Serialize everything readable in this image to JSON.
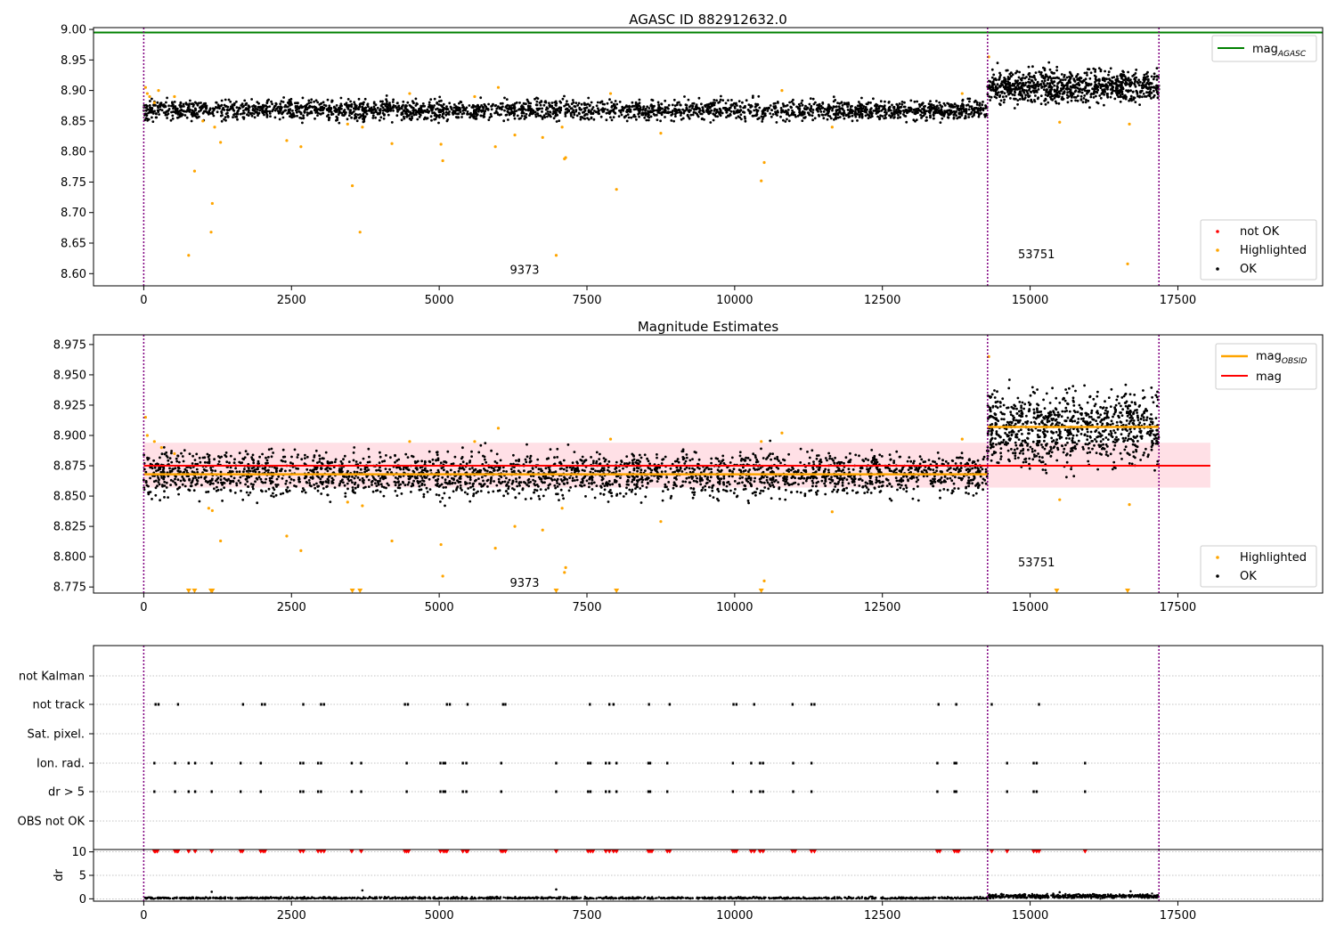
{
  "colors": {
    "ok": "#000000",
    "highlighted": "#ffa500",
    "not_ok": "#ff0000",
    "mag_agasc": "#008000",
    "mag_obsid": "#ffa500",
    "mag": "#ff0000",
    "mag_band": "#ffe0e6",
    "obs_boundary": "#800080",
    "grid": "#b0b0b0"
  },
  "chart_data": [
    {
      "type": "scatter",
      "title": "AGASC ID 882912632.0",
      "xlim": [
        -850,
        19950
      ],
      "ylim": [
        8.58,
        9.003
      ],
      "xticks": [
        0,
        2500,
        5000,
        7500,
        10000,
        12500,
        15000,
        17500
      ],
      "xtick_labels": [
        "0",
        "2500",
        "5000",
        "7500",
        "10000",
        "12500",
        "15000",
        "17500"
      ],
      "yticks": [
        8.6,
        8.65,
        8.7,
        8.75,
        8.8,
        8.85,
        8.9,
        8.95,
        9.0
      ],
      "ytick_labels": [
        "8.60",
        "8.65",
        "8.70",
        "8.75",
        "8.80",
        "8.85",
        "8.90",
        "8.95",
        "9.00"
      ],
      "obs_boundaries": [
        0,
        14280,
        17180
      ],
      "obsids": [
        {
          "label": "9373",
          "x": 7100,
          "y": 8.6
        },
        {
          "label": "53751",
          "x": 15700,
          "y": 8.625
        }
      ],
      "hlines": [
        {
          "name": "mag_AGASC",
          "y": 8.995,
          "x_range": [
            -850,
            19950
          ]
        }
      ],
      "segments": [
        {
          "x_range": [
            0,
            14280
          ],
          "center": 8.868,
          "spread": 0.008,
          "n": 2600
        },
        {
          "x_range": [
            14280,
            17180
          ],
          "center": 8.907,
          "spread": 0.013,
          "n": 900
        }
      ],
      "highlighted_points": [
        [
          30,
          8.905
        ],
        [
          60,
          8.895
        ],
        [
          100,
          8.89
        ],
        [
          180,
          8.88
        ],
        [
          250,
          8.9
        ],
        [
          520,
          8.89
        ],
        [
          760,
          8.63
        ],
        [
          860,
          8.768
        ],
        [
          1000,
          8.85
        ],
        [
          1140,
          8.668
        ],
        [
          1160,
          8.715
        ],
        [
          1200,
          8.84
        ],
        [
          1300,
          8.815
        ],
        [
          2420,
          8.818
        ],
        [
          2660,
          8.808
        ],
        [
          3450,
          8.845
        ],
        [
          3530,
          8.744
        ],
        [
          3660,
          8.668
        ],
        [
          3700,
          8.84
        ],
        [
          4200,
          8.813
        ],
        [
          4500,
          8.895
        ],
        [
          5030,
          8.812
        ],
        [
          5060,
          8.785
        ],
        [
          5600,
          8.89
        ],
        [
          5950,
          8.808
        ],
        [
          6000,
          8.905
        ],
        [
          6280,
          8.827
        ],
        [
          6750,
          8.823
        ],
        [
          6980,
          8.63
        ],
        [
          7080,
          8.84
        ],
        [
          7120,
          8.788
        ],
        [
          7140,
          8.79
        ],
        [
          7900,
          8.895
        ],
        [
          8000,
          8.738
        ],
        [
          8750,
          8.83
        ],
        [
          10450,
          8.752
        ],
        [
          10500,
          8.782
        ],
        [
          10800,
          8.9
        ],
        [
          11650,
          8.84
        ],
        [
          13850,
          8.895
        ],
        [
          14300,
          8.955
        ],
        [
          15500,
          8.848
        ],
        [
          16650,
          8.616
        ],
        [
          16680,
          8.845
        ]
      ],
      "legend": {
        "position": "top-right, bottom-right",
        "line_entries": [
          "mag",
          "AGASC"
        ],
        "point_entries": [
          "not OK",
          "Highlighted",
          "OK"
        ]
      }
    },
    {
      "type": "scatter",
      "title": "Magnitude Estimates",
      "xlim": [
        -850,
        19950
      ],
      "ylim": [
        8.77,
        8.983
      ],
      "xticks": [
        0,
        2500,
        5000,
        7500,
        10000,
        12500,
        15000,
        17500
      ],
      "xtick_labels": [
        "0",
        "2500",
        "5000",
        "7500",
        "10000",
        "12500",
        "15000",
        "17500"
      ],
      "yticks": [
        8.775,
        8.8,
        8.825,
        8.85,
        8.875,
        8.9,
        8.925,
        8.95,
        8.975
      ],
      "ytick_labels": [
        "8.775",
        "8.800",
        "8.825",
        "8.850",
        "8.875",
        "8.900",
        "8.925",
        "8.950",
        "8.975"
      ],
      "obs_boundaries": [
        0,
        14280,
        17180
      ],
      "obsids": [
        {
          "label": "9373",
          "x": 7100,
          "y": 8.775
        },
        {
          "label": "53751",
          "x": 15700,
          "y": 8.792
        }
      ],
      "mag": {
        "value": 8.875,
        "band": [
          8.857,
          8.894
        ],
        "x_range": [
          0,
          18050
        ]
      },
      "mag_obsid": [
        {
          "x_range": [
            0,
            14280
          ],
          "value": 8.868
        },
        {
          "x_range": [
            14280,
            17180
          ],
          "value": 8.907
        }
      ],
      "segments": [
        {
          "x_range": [
            0,
            14280
          ],
          "center": 8.868,
          "spread": 0.009,
          "n": 2600
        },
        {
          "x_range": [
            14280,
            17180
          ],
          "center": 8.906,
          "spread": 0.015,
          "n": 900
        }
      ],
      "highlighted_points": [
        [
          30,
          8.915
        ],
        [
          60,
          8.9
        ],
        [
          180,
          8.895
        ],
        [
          300,
          8.89
        ],
        [
          520,
          8.885
        ],
        [
          1100,
          8.84
        ],
        [
          1160,
          8.838
        ],
        [
          1300,
          8.813
        ],
        [
          2420,
          8.817
        ],
        [
          2660,
          8.805
        ],
        [
          3450,
          8.845
        ],
        [
          3700,
          8.842
        ],
        [
          4200,
          8.813
        ],
        [
          4500,
          8.895
        ],
        [
          5030,
          8.81
        ],
        [
          5060,
          8.784
        ],
        [
          5600,
          8.895
        ],
        [
          5950,
          8.807
        ],
        [
          6000,
          8.906
        ],
        [
          6280,
          8.825
        ],
        [
          6750,
          8.822
        ],
        [
          7080,
          8.84
        ],
        [
          7120,
          8.787
        ],
        [
          7140,
          8.791
        ],
        [
          7900,
          8.897
        ],
        [
          8750,
          8.829
        ],
        [
          10450,
          8.895
        ],
        [
          10500,
          8.78
        ],
        [
          10800,
          8.902
        ],
        [
          11650,
          8.837
        ],
        [
          13850,
          8.897
        ],
        [
          14300,
          8.965
        ],
        [
          15500,
          8.847
        ],
        [
          16680,
          8.843
        ]
      ],
      "clipped_points_x": [
        760,
        860,
        1140,
        1160,
        3530,
        3660,
        6980,
        8000,
        10450,
        15450,
        16650
      ],
      "legend": {
        "position": "top-right, bottom-right",
        "line_entries": [
          "mag",
          "OBSID",
          "mag"
        ],
        "point_entries": [
          "Highlighted",
          "OK"
        ]
      }
    },
    {
      "type": "scatter",
      "title": "",
      "xlim": [
        -850,
        19950
      ],
      "categories": [
        "not Kalman",
        "not track",
        "Sat. pixel.",
        "Ion. rad.",
        "dr > 5",
        "OBS not OK"
      ],
      "obs_boundaries": [
        0,
        14280,
        17180
      ],
      "flags": {
        "not track": [
          200,
          250,
          580,
          1680,
          2000,
          2050,
          2700,
          3000,
          3050,
          4420,
          4470,
          5130,
          5180,
          5480,
          6080,
          6120,
          7550,
          7880,
          7950,
          8550,
          8900,
          9980,
          10030,
          10330,
          10980,
          11300,
          11350,
          13450,
          13750,
          14350,
          15150
        ],
        "Ion. rad.": [
          180,
          530,
          760,
          870,
          1150,
          1640,
          1980,
          2650,
          2700,
          2950,
          3000,
          3520,
          3680,
          4450,
          5020,
          5070,
          5100,
          5400,
          5460,
          6050,
          6980,
          7520,
          7560,
          7820,
          7880,
          8000,
          8540,
          8570,
          8860,
          9970,
          10280,
          10430,
          10480,
          10990,
          11300,
          13430,
          13720,
          13750,
          14610,
          15060,
          15110,
          15930
        ],
        "dr > 5": [
          180,
          530,
          760,
          870,
          1150,
          1640,
          1980,
          2650,
          2700,
          2950,
          3000,
          3520,
          3680,
          4450,
          5020,
          5070,
          5100,
          5400,
          5460,
          6050,
          6980,
          7520,
          7560,
          7820,
          7880,
          8000,
          8540,
          8570,
          8860,
          9970,
          10280,
          10430,
          10480,
          10990,
          11300,
          13430,
          13720,
          13750,
          14610,
          15060,
          15110,
          15930
        ]
      }
    },
    {
      "type": "scatter",
      "title": "",
      "xlim": [
        -850,
        19950
      ],
      "ylim": [
        -0.5,
        10.5
      ],
      "ylabel": "dr",
      "xticks": [
        0,
        2500,
        5000,
        7500,
        10000,
        12500,
        15000,
        17500
      ],
      "xtick_labels": [
        "0",
        "2500",
        "5000",
        "7500",
        "10000",
        "12500",
        "15000",
        "17500"
      ],
      "yticks": [
        0,
        5,
        10
      ],
      "ytick_labels": [
        "0",
        "5",
        "10"
      ],
      "obs_boundaries": [
        0,
        14280,
        17180
      ],
      "segments": [
        {
          "x_range": [
            0,
            14280
          ],
          "center": 0.15,
          "spread": 0.12,
          "n": 1400
        },
        {
          "x_range": [
            14280,
            17180
          ],
          "center": 0.55,
          "spread": 0.2,
          "n": 500
        }
      ],
      "outliers": [
        [
          1150,
          1.5
        ],
        [
          3700,
          1.8
        ],
        [
          6980,
          2.0
        ],
        [
          15500,
          1.4
        ],
        [
          16700,
          1.6
        ]
      ],
      "clipped_points_x": [
        180,
        200,
        230,
        530,
        560,
        580,
        760,
        870,
        1150,
        1640,
        1670,
        1980,
        2020,
        2050,
        2650,
        2700,
        2950,
        3000,
        3050,
        3520,
        3680,
        4420,
        4450,
        4480,
        5020,
        5070,
        5100,
        5130,
        5400,
        5460,
        5480,
        6050,
        6080,
        6120,
        6980,
        7520,
        7560,
        7600,
        7820,
        7880,
        7950,
        8000,
        8540,
        8570,
        8600,
        8860,
        8900,
        9970,
        10000,
        10030,
        10280,
        10330,
        10430,
        10480,
        10980,
        11020,
        11300,
        11350,
        13430,
        13470,
        13720,
        13760,
        13790,
        14350,
        14610,
        15060,
        15110,
        15150,
        15930
      ]
    }
  ]
}
